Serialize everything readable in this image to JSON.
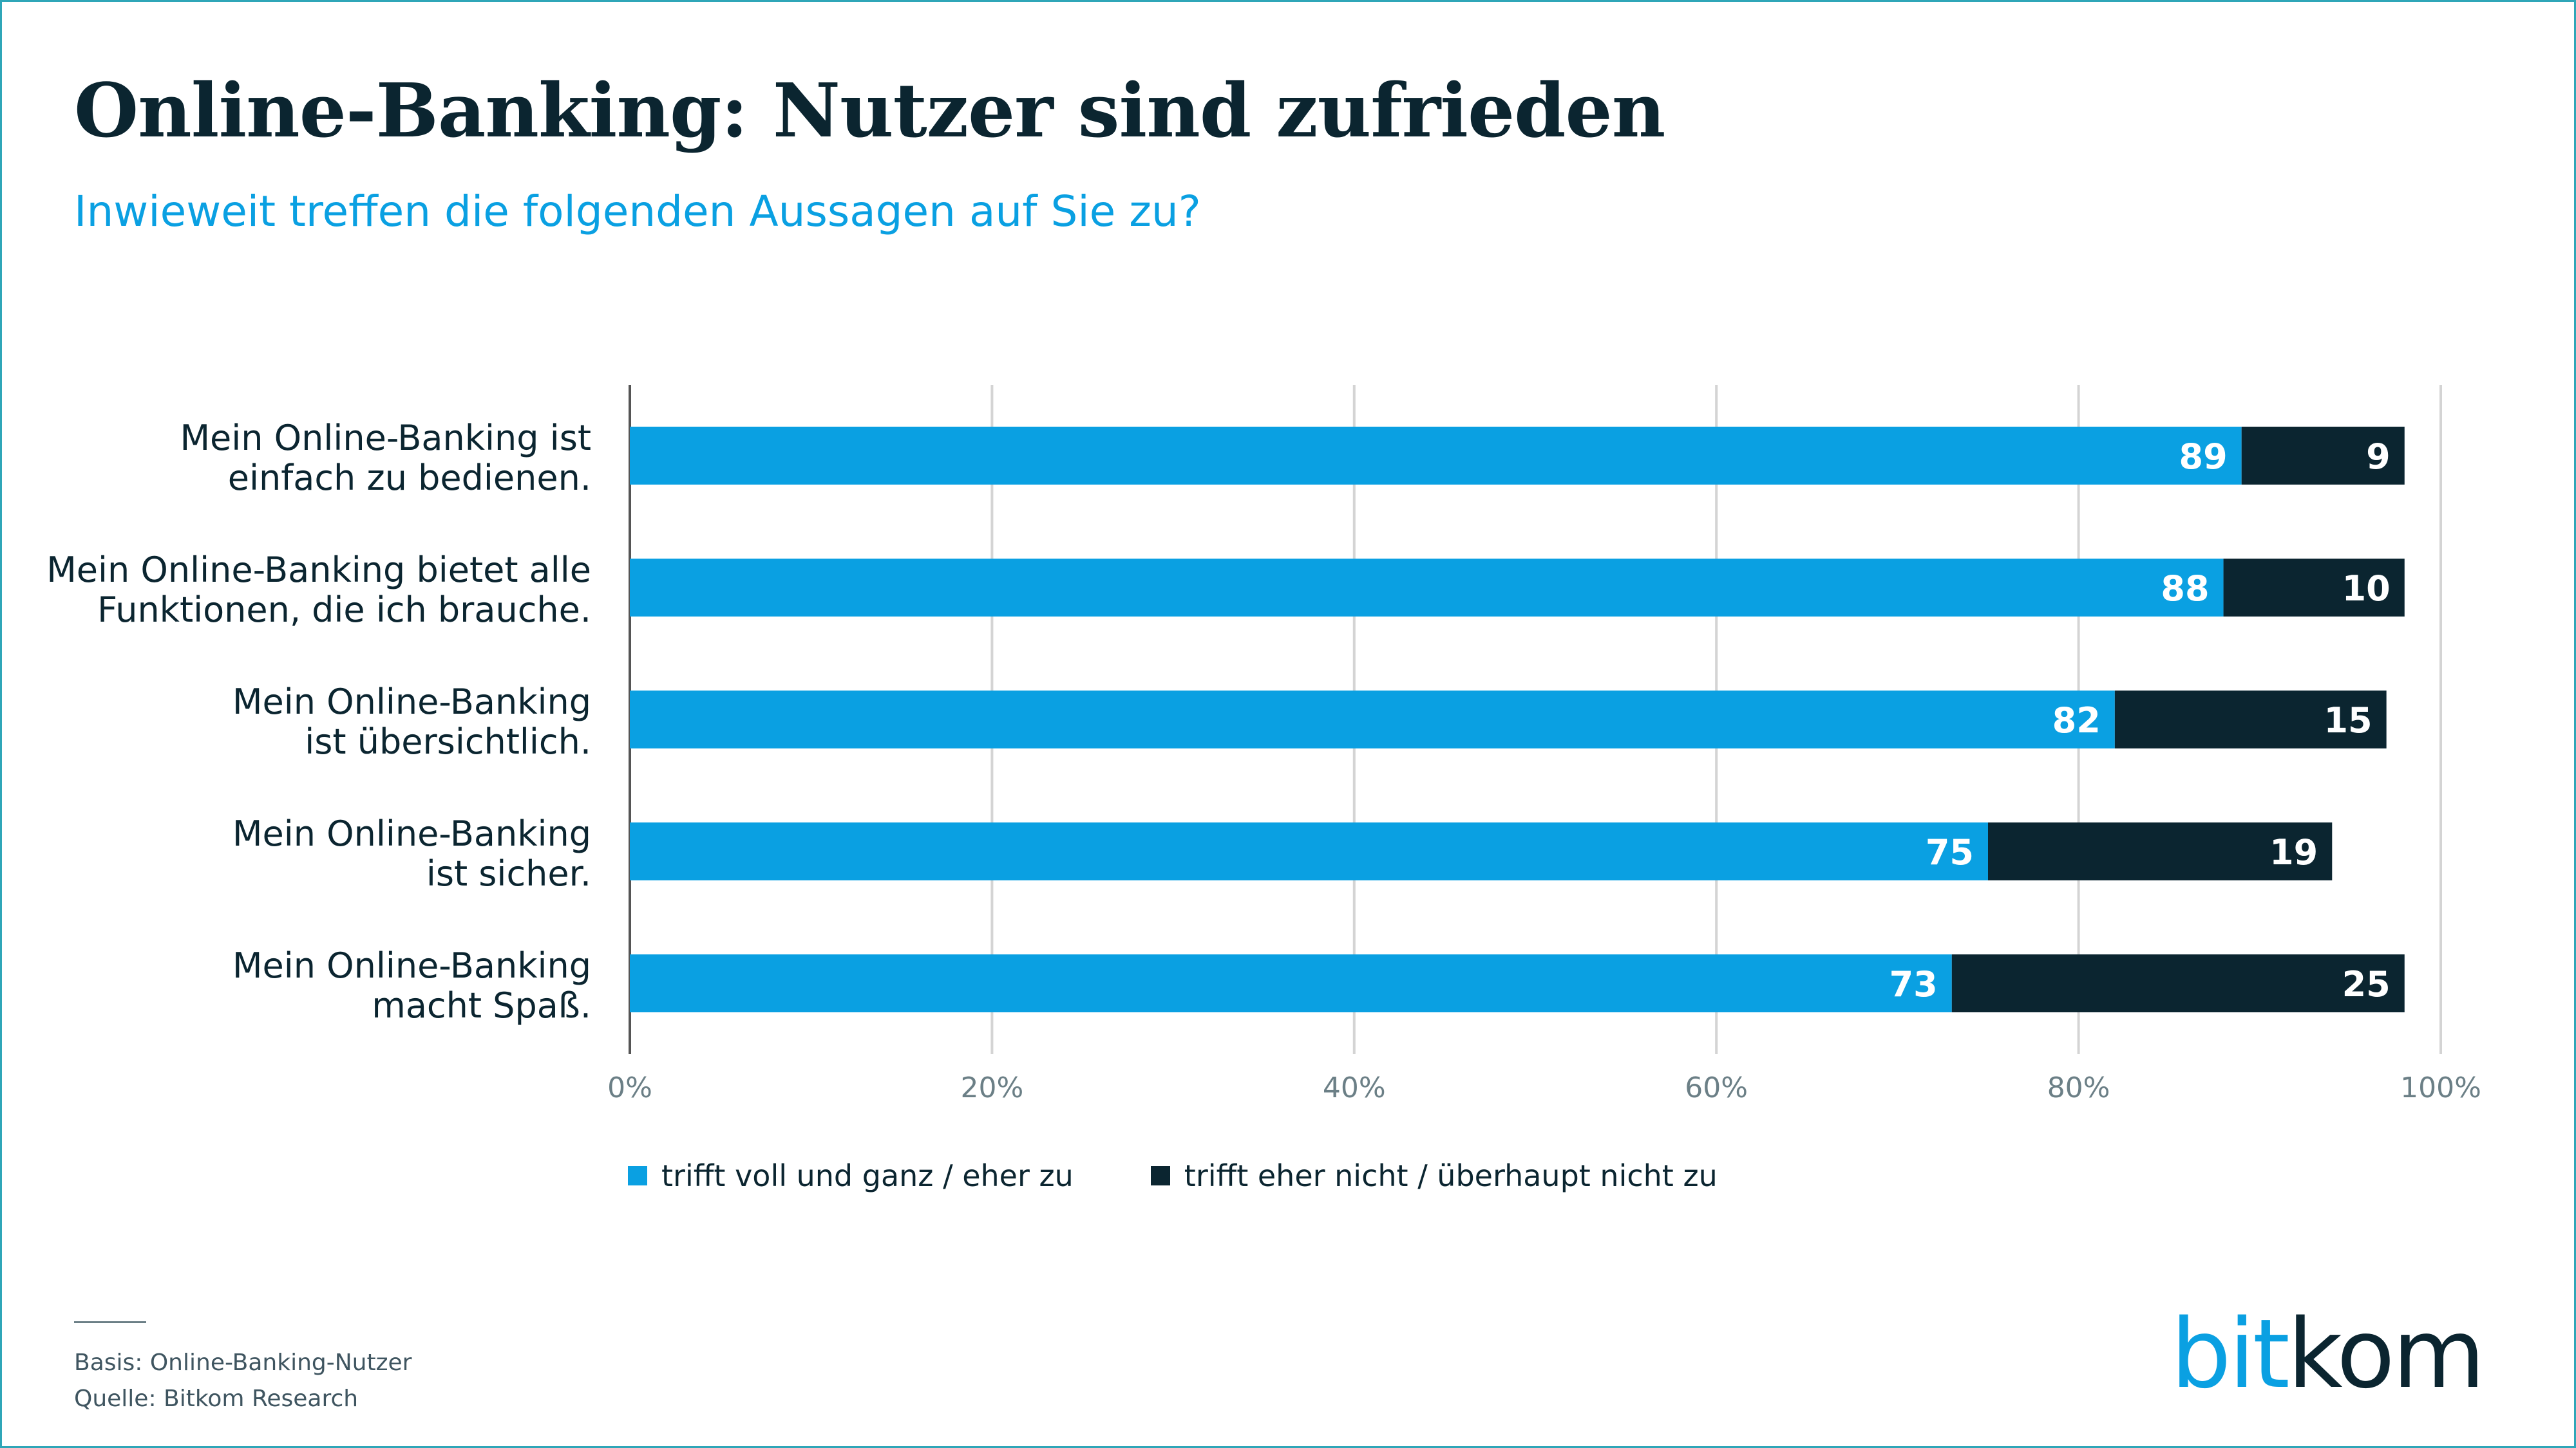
{
  "header": {
    "title": "Online-Banking: Nutzer sind zufrieden",
    "subtitle": "Inwieweit treffen die folgenden Aussagen auf Sie zu?"
  },
  "colors": {
    "positive": "#0aa0e2",
    "negative": "#0b2530",
    "grid": "#d4d4d4",
    "text": "#0b2530",
    "tick": "#6b7f86"
  },
  "chart_data": {
    "type": "bar",
    "orientation": "horizontal",
    "stacked": true,
    "categories": [
      [
        "Mein Online-Banking ist",
        "einfach zu bedienen."
      ],
      [
        "Mein Online-Banking bietet alle",
        "Funktionen, die ich brauche."
      ],
      [
        "Mein Online-Banking",
        "ist übersichtlich."
      ],
      [
        "Mein Online-Banking",
        "ist sicher."
      ],
      [
        "Mein Online-Banking",
        "macht Spaß."
      ]
    ],
    "series": [
      {
        "name": "trifft voll und ganz / eher zu",
        "values": [
          89,
          88,
          82,
          75,
          73
        ]
      },
      {
        "name": "trifft eher nicht / überhaupt nicht zu",
        "values": [
          9,
          10,
          15,
          19,
          25
        ]
      }
    ],
    "xlim": [
      0,
      100
    ],
    "x_ticks": [
      "0%",
      "20%",
      "40%",
      "60%",
      "80%",
      "100%"
    ],
    "grid": true,
    "legend_position": "bottom",
    "data_labels": true
  },
  "footer": {
    "basis": "Basis: Online-Banking-Nutzer",
    "source": "Quelle: Bitkom Research"
  },
  "logo": {
    "part1": "bit",
    "part2": "kom"
  }
}
